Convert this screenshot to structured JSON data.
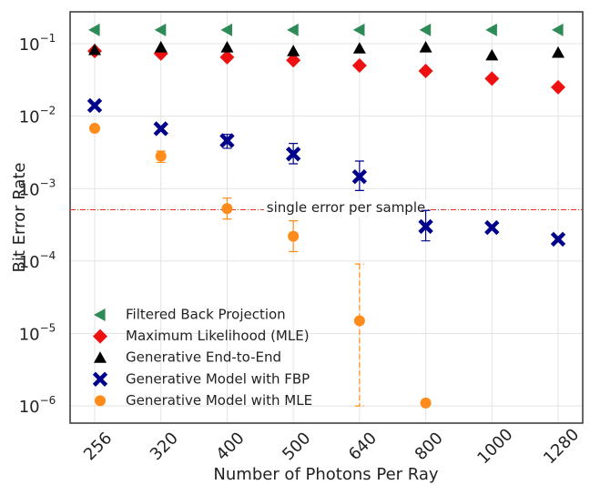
{
  "chart_data": {
    "type": "scatter",
    "xlabel": "Number of Photons Per Ray",
    "ylabel": "Bit Error Rate",
    "categories": [
      "256",
      "320",
      "400",
      "500",
      "640",
      "800",
      "1000",
      "1280"
    ],
    "log_y": true,
    "grid": true,
    "ylim": [
      5.8e-07,
      0.275
    ],
    "yticks": [
      {
        "value": 0.1,
        "label": "10",
        "exponent": "−1"
      },
      {
        "value": 0.01,
        "label": "10",
        "exponent": "−2"
      },
      {
        "value": 0.001,
        "label": "10",
        "exponent": "−3"
      },
      {
        "value": 0.0001,
        "label": "10",
        "exponent": "−4"
      },
      {
        "value": 1e-05,
        "label": "10",
        "exponent": "−5"
      },
      {
        "value": 1e-06,
        "label": "10",
        "exponent": "−6"
      }
    ],
    "legend": "lower left",
    "series": [
      {
        "name": "Filtered Back Projection",
        "color": "#2e8b57",
        "marker": "triangle-left",
        "values": [
          0.155,
          0.155,
          0.155,
          0.155,
          0.155,
          0.155,
          0.155,
          0.155
        ]
      },
      {
        "name": "Maximum Likelihood (MLE)",
        "color": "#ee1111",
        "marker": "diamond",
        "values": [
          0.079,
          0.073,
          0.065,
          0.059,
          0.05,
          0.042,
          0.033,
          0.025
        ]
      },
      {
        "name": "Generative End-to-End",
        "color": "#000000",
        "marker": "triangle-up",
        "values": [
          0.082,
          0.089,
          0.089,
          0.079,
          0.086,
          0.089,
          0.069,
          0.075
        ]
      },
      {
        "name": "Generative Model with FBP",
        "color": "#00008b",
        "marker": "x",
        "values": [
          0.014,
          0.0067,
          0.0046,
          0.003,
          0.00146,
          0.0003,
          0.00029,
          0.0002
        ],
        "errors": [
          null,
          [
            0.0004,
            0.0004
          ],
          [
            0.001,
            0.001
          ],
          [
            0.0008,
            0.0012
          ],
          [
            0.00052,
            0.00094
          ],
          [
            0.00011,
            0.0002
          ],
          null,
          null
        ]
      },
      {
        "name": "Generative Model with MLE",
        "color": "#ff8c1a",
        "marker": "circle",
        "values": [
          0.0068,
          0.0028,
          0.00053,
          0.00022,
          1.5e-05,
          1.1e-06,
          null,
          null
        ],
        "errors": [
          null,
          [
            0.0005,
            0.0005
          ],
          [
            0.00015,
            0.00021
          ],
          [
            8.5e-05,
            0.00014
          ],
          [
            1.4e-05,
            7.6e-05
          ],
          null,
          null,
          null
        ]
      }
    ],
    "hlines": [
      {
        "value": 0.00051,
        "label": "single error per sample",
        "color": "#e83030"
      }
    ]
  }
}
